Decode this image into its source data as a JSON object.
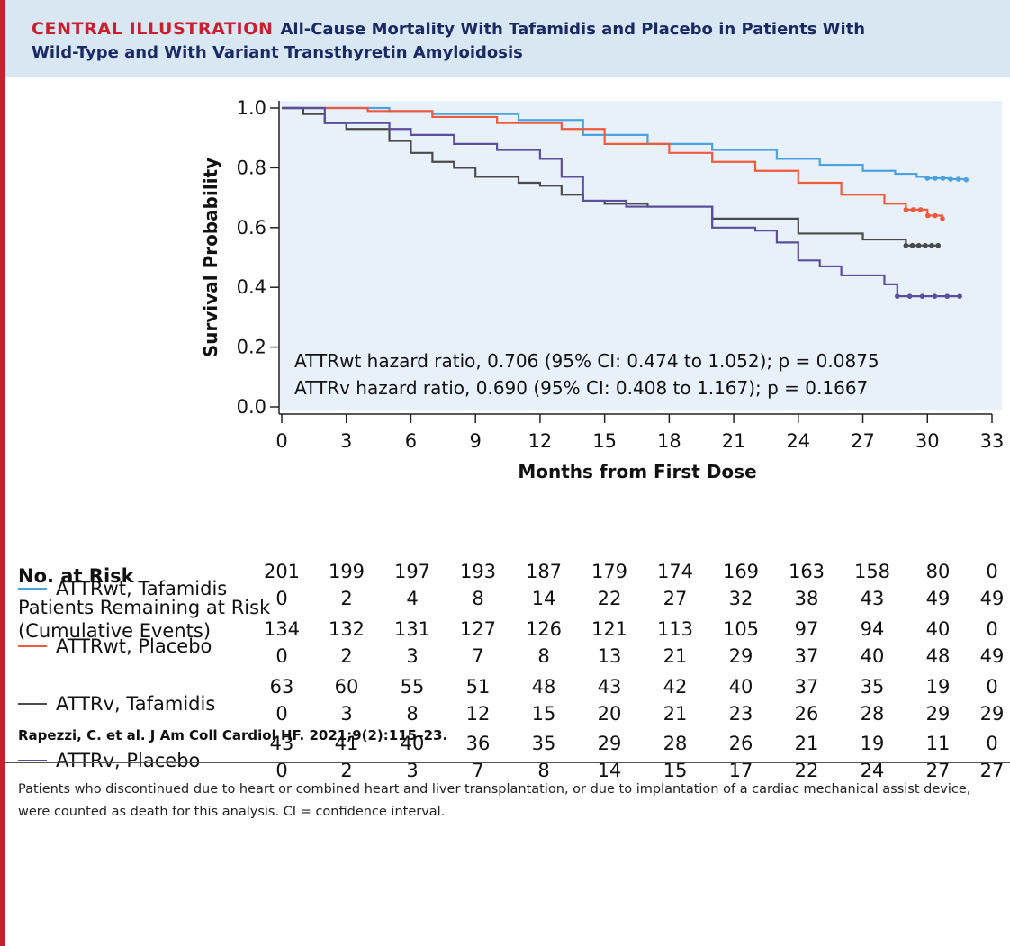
{
  "header": {
    "kicker": "CENTRAL ILLUSTRATION",
    "title_line1": "All-Cause Mortality With Tafamidis and Placebo in Patients With",
    "title_line2": "Wild-Type and With Variant Transthyretin Amyloidosis"
  },
  "chart_data": {
    "type": "line",
    "title": "",
    "xlabel": "Months from First Dose",
    "ylabel": "Survival Probability",
    "xlim": [
      0,
      33
    ],
    "ylim": [
      0.0,
      1.0
    ],
    "xticks": [
      "0",
      "3",
      "6",
      "9",
      "12",
      "15",
      "18",
      "21",
      "24",
      "27",
      "30",
      "33"
    ],
    "yticks": [
      "0.0",
      "0.2",
      "0.4",
      "0.6",
      "0.8",
      "1.0"
    ],
    "grid": false,
    "annotations": [
      "ATTRwt hazard ratio, 0.706 (95% CI: 0.474 to 1.052); p = 0.0875",
      "ATTRv hazard ratio, 0.690 (95% CI: 0.408 to 1.167); p = 0.1667"
    ],
    "series": [
      {
        "name": "ATTRwt, Tafamidis",
        "color": "#4aa3dc",
        "x": [
          0,
          5,
          7,
          11,
          14,
          17,
          20,
          23,
          25,
          27,
          28.5,
          29.5,
          30,
          31,
          31.8
        ],
        "y": [
          1.0,
          0.99,
          0.98,
          0.96,
          0.91,
          0.88,
          0.86,
          0.83,
          0.81,
          0.79,
          0.78,
          0.77,
          0.765,
          0.762,
          0.76
        ]
      },
      {
        "name": "ATTRwt, Placebo",
        "color": "#ef5a3c",
        "x": [
          0,
          4,
          7,
          10,
          13,
          15,
          18,
          20,
          22,
          24,
          26,
          28,
          29,
          30,
          30.7
        ],
        "y": [
          1.0,
          0.99,
          0.97,
          0.95,
          0.93,
          0.88,
          0.85,
          0.82,
          0.79,
          0.75,
          0.71,
          0.68,
          0.66,
          0.64,
          0.63
        ]
      },
      {
        "name": "ATTRv, Tafamidis",
        "color": "#4a4a4a",
        "x": [
          0,
          1,
          2,
          3,
          5,
          6,
          7,
          8,
          9,
          11,
          12,
          13,
          14,
          15,
          17,
          20,
          24,
          27,
          29,
          30,
          30.5
        ],
        "y": [
          1.0,
          0.98,
          0.95,
          0.93,
          0.89,
          0.85,
          0.82,
          0.8,
          0.77,
          0.75,
          0.74,
          0.71,
          0.69,
          0.68,
          0.67,
          0.63,
          0.58,
          0.56,
          0.54,
          0.54,
          0.54
        ]
      },
      {
        "name": "ATTRv, Placebo",
        "color": "#5b4e9c",
        "x": [
          0,
          2,
          5,
          6,
          8,
          10,
          12,
          13,
          14,
          16,
          20,
          22,
          23,
          24,
          25,
          26,
          28,
          28.6,
          29,
          31.5
        ],
        "y": [
          1.0,
          0.95,
          0.93,
          0.91,
          0.88,
          0.86,
          0.83,
          0.77,
          0.69,
          0.67,
          0.6,
          0.59,
          0.55,
          0.49,
          0.47,
          0.44,
          0.41,
          0.37,
          0.37,
          0.37
        ]
      }
    ]
  },
  "risk_table": {
    "heading": "No. at Risk",
    "subheading_line1": "Patients Remaining at Risk",
    "subheading_line2": "(Cumulative Events)",
    "rows": [
      {
        "label": "ATTRwt, Tafamidis",
        "color": "#4aa3dc",
        "at_risk": [
          "201",
          "199",
          "197",
          "193",
          "187",
          "179",
          "174",
          "169",
          "163",
          "158",
          "80",
          "0"
        ],
        "events": [
          "0",
          "2",
          "4",
          "8",
          "14",
          "22",
          "27",
          "32",
          "38",
          "43",
          "49",
          "49"
        ]
      },
      {
        "label": "ATTRwt, Placebo",
        "color": "#ef5a3c",
        "at_risk": [
          "134",
          "132",
          "131",
          "127",
          "126",
          "121",
          "113",
          "105",
          "97",
          "94",
          "40",
          "0"
        ],
        "events": [
          "0",
          "2",
          "3",
          "7",
          "8",
          "13",
          "21",
          "29",
          "37",
          "40",
          "48",
          "49"
        ]
      },
      {
        "label": "ATTRv, Tafamidis",
        "color": "#4a4a4a",
        "at_risk": [
          "63",
          "60",
          "55",
          "51",
          "48",
          "43",
          "42",
          "40",
          "37",
          "35",
          "19",
          "0"
        ],
        "events": [
          "0",
          "3",
          "8",
          "12",
          "15",
          "20",
          "21",
          "23",
          "26",
          "28",
          "29",
          "29"
        ]
      },
      {
        "label": "ATTRv, Placebo",
        "color": "#5b4e9c",
        "at_risk": [
          "43",
          "41",
          "40",
          "36",
          "35",
          "29",
          "28",
          "26",
          "21",
          "19",
          "11",
          "0"
        ],
        "events": [
          "0",
          "2",
          "3",
          "7",
          "8",
          "14",
          "15",
          "17",
          "22",
          "24",
          "27",
          "27"
        ]
      }
    ]
  },
  "citation": "Rapezzi, C. et al. J Am Coll Cardiol HF. 2021;9(2):115–23.",
  "footnote": "Patients who discontinued due to heart or combined heart and liver transplantation, or due to implantation of a cardiac mechanical assist device, were counted as death for this analysis. CI = confidence interval.",
  "colors": {
    "accent_red": "#c8202f",
    "header_bg": "#d9e7f3",
    "plot_bg": "#e8f1fa",
    "title_navy": "#1b2a63"
  }
}
